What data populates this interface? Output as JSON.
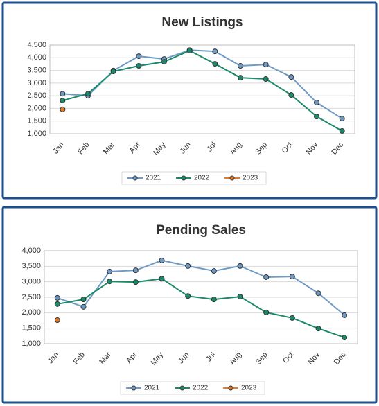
{
  "chart_data": [
    {
      "type": "line",
      "title": "New Listings",
      "categories": [
        "Jan",
        "Feb",
        "Mar",
        "Apr",
        "May",
        "Jun",
        "Jul",
        "Aug",
        "Sep",
        "Oct",
        "Nov",
        "Dec"
      ],
      "ylim": [
        1000,
        4500
      ],
      "yticks": [
        {
          "value": 1000,
          "label": "1,000"
        },
        {
          "value": 1500,
          "label": "1,500"
        },
        {
          "value": 2000,
          "label": "2,000"
        },
        {
          "value": 2500,
          "label": "2,500"
        },
        {
          "value": 3000,
          "label": "3,000"
        },
        {
          "value": 3500,
          "label": "3,500"
        },
        {
          "value": 4000,
          "label": "4,000"
        },
        {
          "value": 4500,
          "label": "4,500"
        }
      ],
      "grid": true,
      "legend": "bottom",
      "series": [
        {
          "name": "2021",
          "color": "#6f9ac4",
          "values": [
            2580,
            2500,
            3490,
            4060,
            3950,
            4300,
            4250,
            3680,
            3730,
            3240,
            2230,
            1600
          ]
        },
        {
          "name": "2022",
          "color": "#1b8a6b",
          "values": [
            2310,
            2580,
            3460,
            3680,
            3840,
            4280,
            3760,
            3210,
            3160,
            2530,
            1680,
            1110
          ]
        },
        {
          "name": "2023",
          "color": "#e07b2a",
          "values": [
            1960,
            null,
            null,
            null,
            null,
            null,
            null,
            null,
            null,
            null,
            null,
            null
          ]
        }
      ]
    },
    {
      "type": "line",
      "title": "Pending Sales",
      "categories": [
        "Jan",
        "Feb",
        "Mar",
        "Apr",
        "May",
        "Jun",
        "Jul",
        "Aug",
        "Sep",
        "Oct",
        "Nov",
        "Dec"
      ],
      "ylim": [
        1000,
        4000
      ],
      "yticks": [
        {
          "value": 1000,
          "label": "1,000"
        },
        {
          "value": 1500,
          "label": "1,500"
        },
        {
          "value": 2000,
          "label": "2,000"
        },
        {
          "value": 2500,
          "label": "2,500"
        },
        {
          "value": 3000,
          "label": "3,000"
        },
        {
          "value": 3500,
          "label": "3,500"
        },
        {
          "value": 4000,
          "label": "4,000"
        }
      ],
      "grid": true,
      "legend": "bottom",
      "series": [
        {
          "name": "2021",
          "color": "#6f9ac4",
          "values": [
            2480,
            2190,
            3330,
            3370,
            3690,
            3510,
            3350,
            3510,
            3150,
            3170,
            2630,
            1920
          ]
        },
        {
          "name": "2022",
          "color": "#1b8a6b",
          "values": [
            2280,
            2430,
            3010,
            2990,
            3100,
            2540,
            2430,
            2520,
            2010,
            1830,
            1490,
            1200
          ]
        },
        {
          "name": "2023",
          "color": "#e07b2a",
          "values": [
            1760,
            null,
            null,
            null,
            null,
            null,
            null,
            null,
            null,
            null,
            null,
            null
          ]
        }
      ]
    }
  ]
}
